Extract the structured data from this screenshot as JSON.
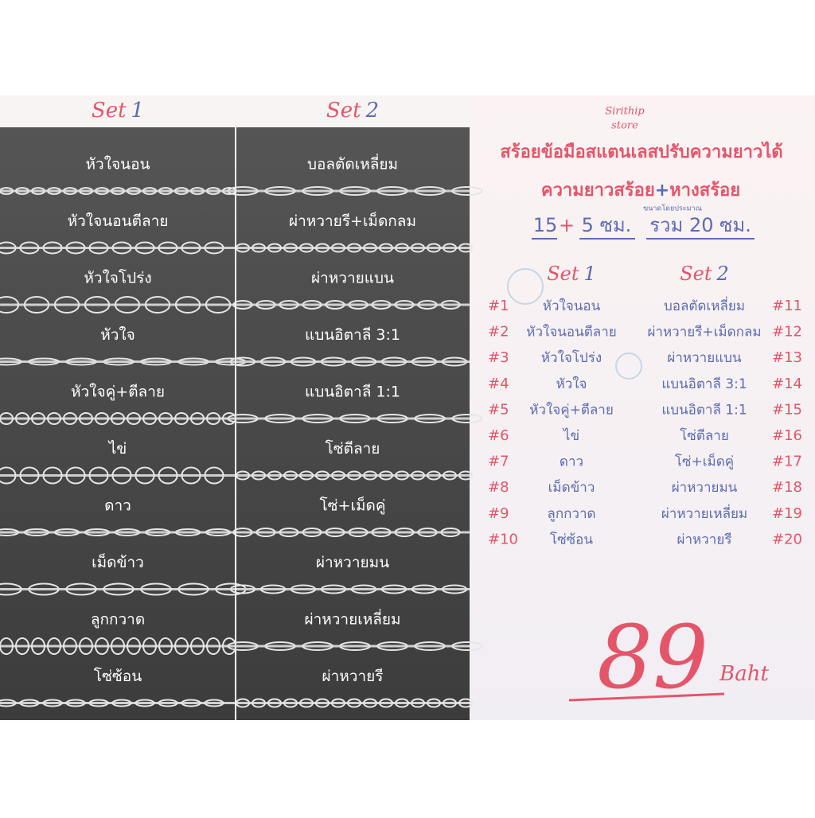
{
  "sets": [
    {
      "label": "Set",
      "number": "1",
      "codes": [
        "#1",
        "#2",
        "#3",
        "#4",
        "#5",
        "#6",
        "#7",
        "#8",
        "#9",
        "#10"
      ],
      "items": [
        "หัวใจนอน",
        "หัวใจนอนตีลาย",
        "หัวใจโปร่ง",
        "หัวใจ",
        "หัวใจคู่+ตีลาย",
        "ไข่",
        "ดาว",
        "เม็ดข้าว",
        "ลูกกวาด",
        "โซ่ซ้อน"
      ]
    },
    {
      "label": "Set",
      "number": "2",
      "codes": [
        "#11",
        "#12",
        "#13",
        "#14",
        "#15",
        "#16",
        "#17",
        "#18",
        "#19",
        "#20"
      ],
      "items": [
        "บอลตัดเหลี่ยม",
        "ผ่าหวายรี+เม็ดกลม",
        "ผ่าหวายแบน",
        "แบนอิตาลี 3:1",
        "แบนอิตาลี 1:1",
        "โซ่ตีลาย",
        "โซ่+เม็ดคู่",
        "ผ่าหวายมน",
        "ผ่าหวายเหลี่ยม",
        "ผ่าหวายรี"
      ]
    }
  ],
  "info": {
    "store": [
      "Sirithip",
      "store"
    ],
    "title": "สร้อยข้อมือสแตนเลสปรับความยาวได้",
    "subtitle": [
      "ความยาวสร้อย",
      "+",
      "หางสร้อย"
    ],
    "note": "ขนาดโดยประมาณ",
    "length": [
      "15",
      "+",
      "5 ซม.",
      "รวม 20 ซม."
    ],
    "price": "89",
    "currency": "Baht"
  }
}
